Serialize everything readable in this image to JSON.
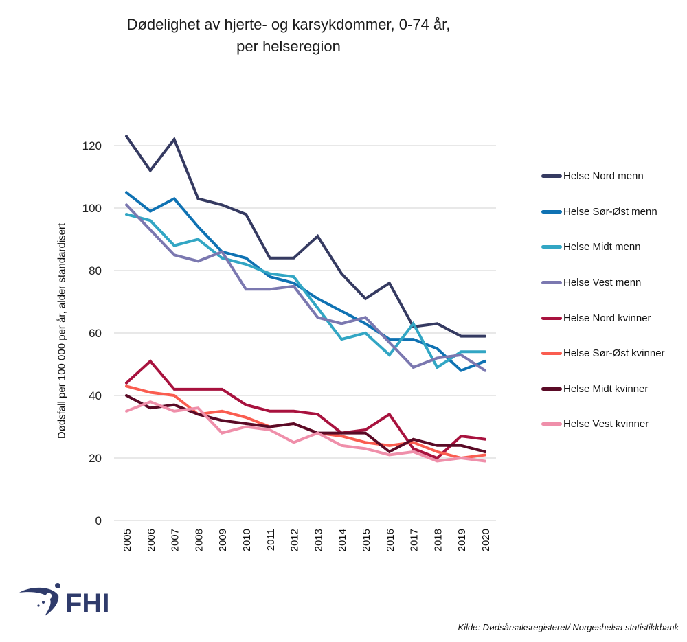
{
  "chart_data": {
    "type": "line",
    "title": [
      "Dødelighet av hjerte- og karsykdommer, 0-74 år,",
      "per helseregion"
    ],
    "xlabel": "",
    "ylabel": "Dødsfall per 100 000 per år, alder standardisert",
    "ylim": [
      0,
      120
    ],
    "yticks": [
      0,
      20,
      40,
      60,
      80,
      100,
      120
    ],
    "grid": true,
    "legend_position": "right",
    "categories": [
      "2005",
      "2006",
      "2007",
      "2008",
      "2009",
      "2010",
      "2011",
      "2012",
      "2013",
      "2014",
      "2015",
      "2016",
      "2017",
      "2018",
      "2019",
      "2020"
    ],
    "series": [
      {
        "name": "Helse Nord menn",
        "color": "#353a61",
        "values": [
          123,
          112,
          122,
          103,
          101,
          98,
          84,
          84,
          91,
          79,
          71,
          76,
          62,
          63,
          59,
          59
        ]
      },
      {
        "name": "Helse Sør-Øst menn",
        "color": "#0f72b3",
        "values": [
          105,
          99,
          103,
          94,
          86,
          84,
          78,
          76,
          71,
          67,
          63,
          58,
          58,
          55,
          48,
          51
        ]
      },
      {
        "name": "Helse Midt menn",
        "color": "#32a6c4",
        "values": [
          98,
          96,
          88,
          90,
          84,
          82,
          79,
          78,
          68,
          58,
          60,
          53,
          63,
          49,
          54,
          54
        ]
      },
      {
        "name": "Helse Vest menn",
        "color": "#7b78b0",
        "values": [
          101,
          93,
          85,
          83,
          86,
          74,
          74,
          75,
          65,
          63,
          65,
          57,
          49,
          52,
          53,
          48
        ]
      },
      {
        "name": "Helse Nord kvinner",
        "color": "#a8123e",
        "values": [
          44,
          51,
          42,
          42,
          42,
          37,
          35,
          35,
          34,
          28,
          29,
          34,
          23,
          20,
          27,
          26
        ]
      },
      {
        "name": "Helse Sør-Øst kvinner",
        "color": "#fa5d50",
        "values": [
          43,
          41,
          40,
          34,
          35,
          33,
          30,
          31,
          28,
          27,
          25,
          24,
          25,
          22,
          20,
          21
        ]
      },
      {
        "name": "Helse Midt kvinner",
        "color": "#5a0a26",
        "values": [
          40,
          36,
          37,
          34,
          32,
          31,
          30,
          31,
          28,
          28,
          28,
          22,
          26,
          24,
          24,
          22
        ]
      },
      {
        "name": "Helse Vest kvinner",
        "color": "#ef8faa",
        "values": [
          35,
          38,
          35,
          36,
          28,
          30,
          29,
          25,
          28,
          24,
          23,
          21,
          22,
          19,
          20,
          19
        ]
      }
    ]
  },
  "logo": {
    "text": "FHI",
    "color": "#2f3b6b"
  },
  "source": "Kilde: Dødsårsaksregisteret/ Norgeshelsa statistikkbank"
}
